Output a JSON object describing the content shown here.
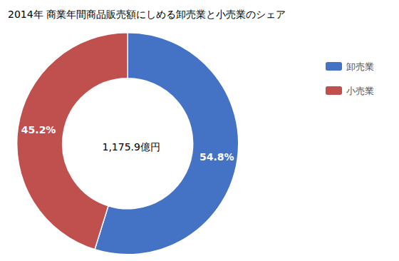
{
  "chart_data": {
    "type": "donut",
    "title": "2014年 商業年間商品販売額にしめる卸売業と小売業のシェア",
    "categories": [
      "卸売業",
      "小売業"
    ],
    "values": [
      54.8,
      45.2
    ],
    "value_labels": [
      "54.8%",
      "45.2%"
    ],
    "colors": [
      "#4472C4",
      "#C0504D"
    ],
    "data_labels": true,
    "annotations": [
      "1,175.9億円"
    ],
    "legend": "upper right"
  }
}
